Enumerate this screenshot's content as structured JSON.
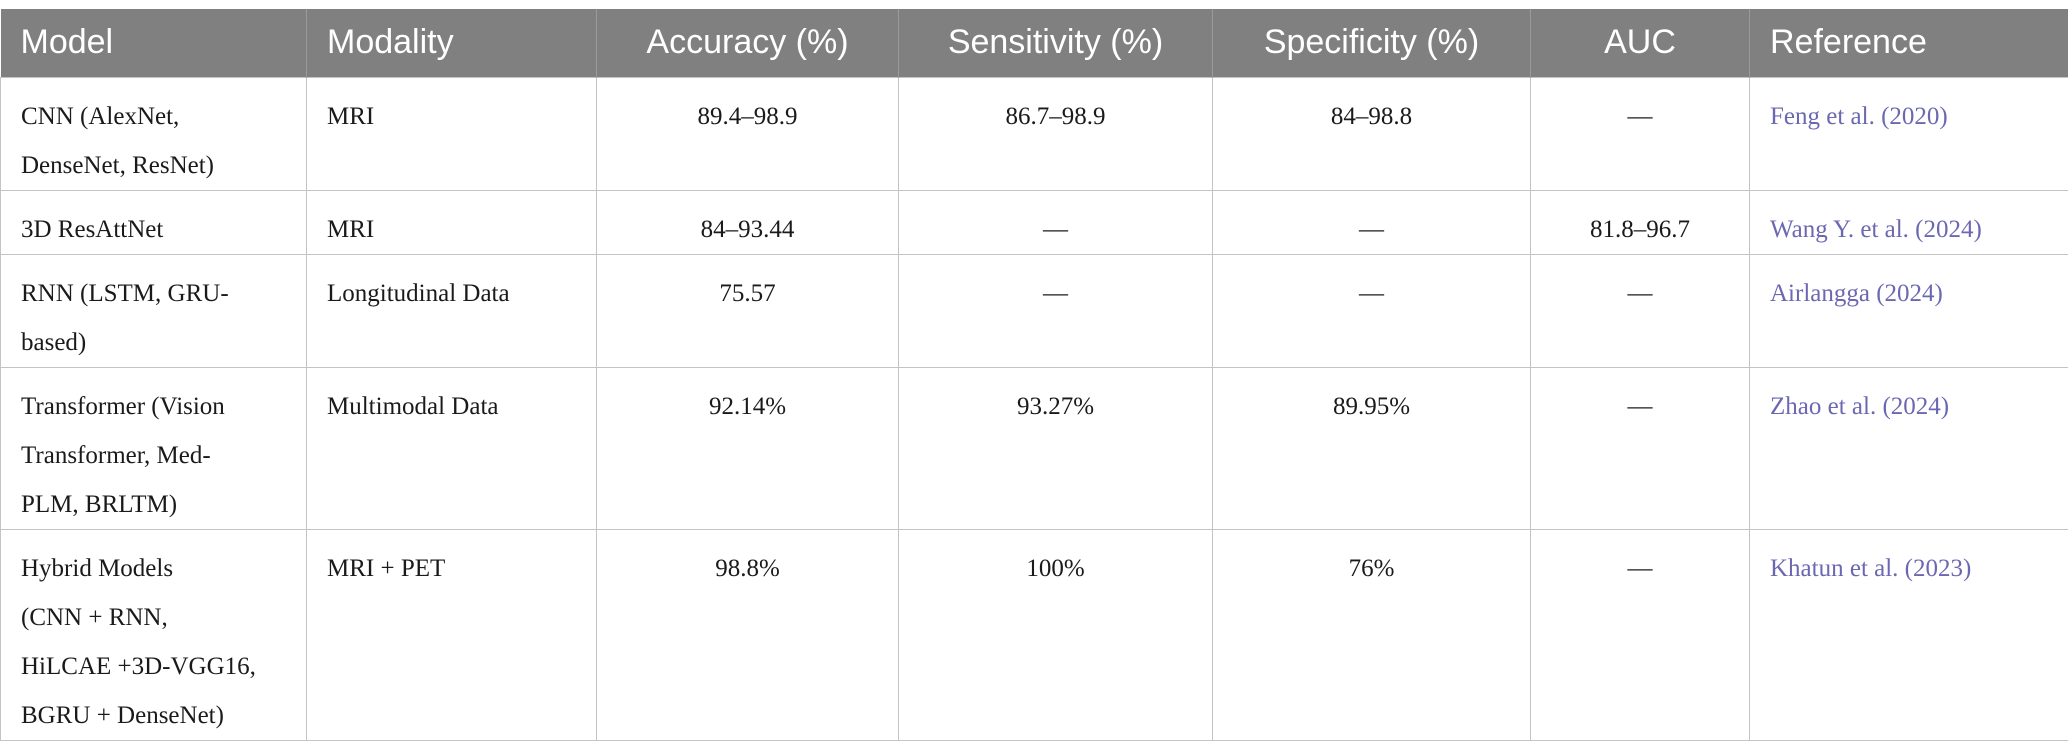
{
  "table": {
    "headers": [
      "Model",
      "Modality",
      "Accuracy (%)",
      "Sensitivity (%)",
      "Specificity (%)",
      "AUC",
      "Reference"
    ],
    "rows": [
      {
        "model": [
          "CNN (AlexNet,",
          "DenseNet, ResNet)"
        ],
        "modality": "MRI",
        "accuracy": "89.4–98.9",
        "sensitivity": "86.7–98.9",
        "specificity": "84–98.8",
        "auc": "—",
        "reference": "Feng et al. (2020)"
      },
      {
        "model": [
          "3D ResAttNet"
        ],
        "modality": "MRI",
        "accuracy": "84–93.44",
        "sensitivity": "—",
        "specificity": "—",
        "auc": "81.8–96.7",
        "reference": "Wang Y. et al. (2024)"
      },
      {
        "model": [
          "RNN (LSTM, GRU-",
          "based)"
        ],
        "modality": "Longitudinal Data",
        "accuracy": "75.57",
        "sensitivity": "—",
        "specificity": "—",
        "auc": "—",
        "reference": "Airlangga (2024)"
      },
      {
        "model": [
          "Transformer (Vision",
          "Transformer, Med-",
          "PLM, BRLTM)"
        ],
        "modality": "Multimodal Data",
        "accuracy": "92.14%",
        "sensitivity": "93.27%",
        "specificity": "89.95%",
        "auc": "—",
        "reference": "Zhao et al. (2024)"
      },
      {
        "model": [
          "Hybrid Models",
          "(CNN + RNN,",
          "HiLCAE +3D-VGG16,",
          "BGRU + DenseNet)"
        ],
        "modality": "MRI + PET",
        "accuracy": "98.8%",
        "sensitivity": "100%",
        "specificity": "76%",
        "auc": "—",
        "reference": "Khatun et al. (2023)"
      }
    ]
  },
  "colors": {
    "header_bg": "#808080",
    "header_text": "#ffffff",
    "reference_link": "#6b68b2",
    "border": "#c4c4c4"
  }
}
